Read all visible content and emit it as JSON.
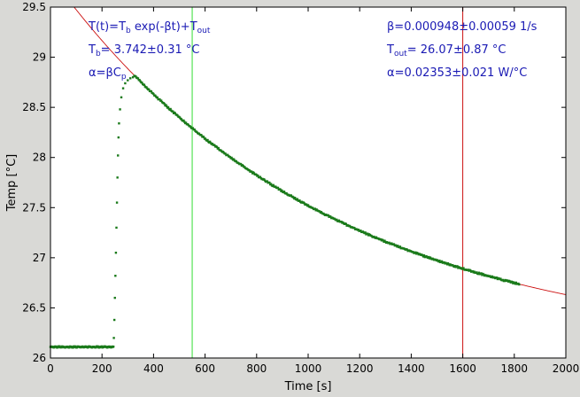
{
  "chart_data": {
    "type": "scatter",
    "xlabel": "Time [s]",
    "ylabel": "Temp [°C]",
    "xlim": [
      0,
      2000
    ],
    "ylim": [
      26.0,
      29.5
    ],
    "x_ticks": [
      "0",
      "200",
      "400",
      "600",
      "800",
      "1000",
      "1200",
      "1400",
      "1600",
      "1800",
      "2000"
    ],
    "y_ticks": [
      "26",
      "26.5",
      "27",
      "27.5",
      "28",
      "28.5",
      "29",
      "29.5"
    ],
    "grid": false,
    "fit_model": {
      "T_b": 3.742,
      "T_out": 26.07,
      "beta": 0.000948,
      "curve_x_range": [
        0,
        2000
      ]
    },
    "series": [
      {
        "style": "points",
        "color": "#1a7a1a",
        "segments": [
          {
            "kind": "baseline",
            "x_range": [
              0,
              245
            ],
            "y": 26.11
          },
          {
            "kind": "rise",
            "points": [
              [
                246,
                26.2
              ],
              [
                248,
                26.38
              ],
              [
                250,
                26.6
              ],
              [
                252,
                26.82
              ],
              [
                254,
                27.05
              ],
              [
                256,
                27.3
              ],
              [
                258,
                27.55
              ],
              [
                260,
                27.8
              ],
              [
                262,
                28.02
              ],
              [
                264,
                28.2
              ],
              [
                266,
                28.34
              ],
              [
                270,
                28.48
              ],
              [
                275,
                28.6
              ],
              [
                282,
                28.69
              ],
              [
                290,
                28.74
              ],
              [
                300,
                28.77
              ],
              [
                310,
                28.79
              ],
              [
                320,
                28.8
              ]
            ]
          },
          {
            "kind": "decay",
            "x_range": [
              325,
              1820
            ]
          }
        ]
      }
    ],
    "vertical_lines": [
      {
        "x": 550,
        "color": "#33dd33"
      },
      {
        "x": 1600,
        "color": "#cc1111"
      }
    ],
    "annotations": {
      "left": [
        {
          "parts": [
            [
              "T(t)=T",
              ""
            ],
            [
              "b",
              "sub"
            ],
            [
              " exp(-βt)+T",
              ""
            ],
            [
              "out",
              "sub"
            ]
          ]
        },
        {
          "parts": [
            [
              "T",
              ""
            ],
            [
              "b",
              "sub"
            ],
            [
              "= 3.742±0.31 °C",
              ""
            ]
          ]
        },
        {
          "parts": [
            [
              "α=βC",
              ""
            ],
            [
              "p",
              "sub"
            ]
          ]
        }
      ],
      "right": [
        {
          "parts": [
            [
              "β=0.000948±0.00059 1/s",
              ""
            ]
          ]
        },
        {
          "parts": [
            [
              "T",
              ""
            ],
            [
              "out",
              "sub"
            ],
            [
              "= 26.07±0.87 °C",
              ""
            ]
          ]
        },
        {
          "parts": [
            [
              "α=0.02353±0.021 W/°C",
              ""
            ]
          ]
        }
      ]
    }
  }
}
